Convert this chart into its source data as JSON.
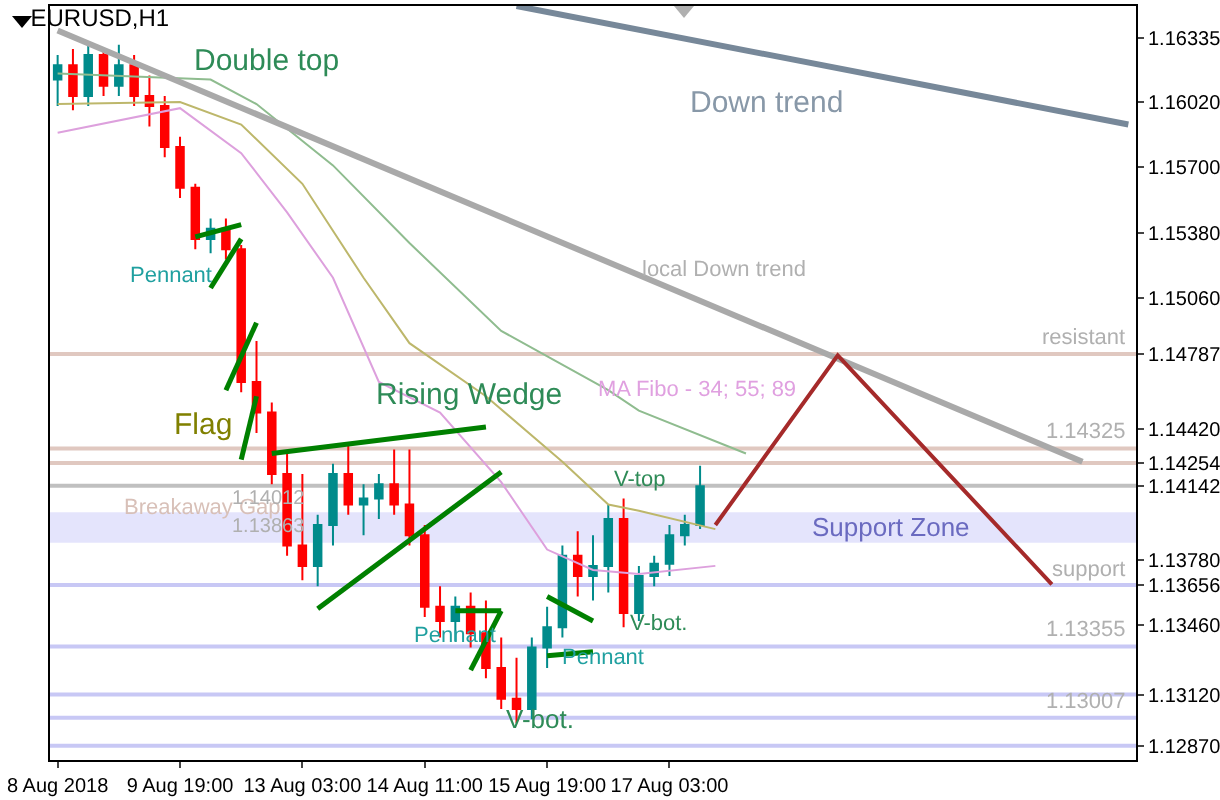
{
  "chart_data": {
    "type": "candlestick",
    "title": "EURUSD,H1",
    "categories": [
      "8 Aug 2018",
      null,
      null,
      null,
      null,
      null,
      null,
      null,
      "9 Aug 19:00",
      null,
      null,
      null,
      null,
      null,
      null,
      null,
      "13 Aug 03:00",
      null,
      null,
      null,
      null,
      null,
      null,
      null,
      "14 Aug 11:00",
      null,
      null,
      null,
      null,
      null,
      null,
      null,
      "15 Aug 19:00",
      null,
      null,
      null,
      null,
      null,
      null,
      null,
      "17 Aug 03:00",
      null,
      null,
      null,
      null,
      null,
      null,
      null,
      null,
      null,
      null,
      null,
      null,
      null,
      null,
      null,
      null,
      null,
      null,
      null,
      null,
      null,
      null,
      null,
      null,
      null,
      null,
      null,
      null,
      null,
      null
    ],
    "ohlc": [
      [
        1.1613,
        1.1625,
        1.16,
        1.162
      ],
      [
        1.162,
        1.1628,
        1.1598,
        1.1605
      ],
      [
        1.1605,
        1.163,
        1.16,
        1.1625
      ],
      [
        1.1625,
        1.1628,
        1.1605,
        1.161
      ],
      [
        1.161,
        1.163,
        1.1605,
        1.162
      ],
      [
        1.162,
        1.1625,
        1.16,
        1.1605
      ],
      [
        1.1605,
        1.1615,
        1.159,
        1.16
      ],
      [
        1.16,
        1.1605,
        1.1575,
        1.158
      ],
      [
        1.158,
        1.1585,
        1.1555,
        1.156
      ],
      [
        1.156,
        1.1562,
        1.153,
        1.1535
      ],
      [
        1.1535,
        1.1545,
        1.1528,
        1.154
      ],
      [
        1.154,
        1.1545,
        1.1525,
        1.153
      ],
      [
        1.153,
        1.1532,
        1.146,
        1.1465
      ],
      [
        1.1465,
        1.1485,
        1.144,
        1.145
      ],
      [
        1.145,
        1.1455,
        1.1415,
        1.142
      ],
      [
        1.142,
        1.143,
        1.138,
        1.1385
      ],
      [
        1.1385,
        1.142,
        1.1368,
        1.1375
      ],
      [
        1.1375,
        1.14,
        1.1365,
        1.1395
      ],
      [
        1.1395,
        1.1425,
        1.1385,
        1.142
      ],
      [
        1.142,
        1.1435,
        1.14,
        1.1405
      ],
      [
        1.1405,
        1.1415,
        1.139,
        1.1408
      ],
      [
        1.1408,
        1.142,
        1.1398,
        1.1415
      ],
      [
        1.1415,
        1.1432,
        1.14,
        1.1405
      ],
      [
        1.1405,
        1.1432,
        1.1385,
        1.139
      ],
      [
        1.139,
        1.1395,
        1.135,
        1.1355
      ],
      [
        1.1355,
        1.1365,
        1.134,
        1.1348
      ],
      [
        1.1348,
        1.136,
        1.1338,
        1.1355
      ],
      [
        1.1355,
        1.1362,
        1.1335,
        1.1342
      ],
      [
        1.1342,
        1.1358,
        1.132,
        1.1325
      ],
      [
        1.1325,
        1.134,
        1.1305,
        1.131
      ],
      [
        1.131,
        1.133,
        1.1298,
        1.1305
      ],
      [
        1.1305,
        1.134,
        1.13,
        1.1335
      ],
      [
        1.1335,
        1.1355,
        1.1325,
        1.1345
      ],
      [
        1.1345,
        1.1385,
        1.134,
        1.138
      ],
      [
        1.138,
        1.1392,
        1.136,
        1.137
      ],
      [
        1.137,
        1.139,
        1.1358,
        1.1375
      ],
      [
        1.1375,
        1.1405,
        1.1362,
        1.1398
      ],
      [
        1.1398,
        1.1408,
        1.1345,
        1.1352
      ],
      [
        1.1352,
        1.1375,
        1.1348,
        1.137
      ],
      [
        1.137,
        1.138,
        1.1365,
        1.1376
      ],
      [
        1.1376,
        1.1395,
        1.137,
        1.139
      ],
      [
        1.139,
        1.14,
        1.1385,
        1.1395
      ],
      [
        1.1395,
        1.1424,
        1.1393,
        1.1414
      ],
      null,
      null,
      null,
      null,
      null,
      null,
      null,
      null,
      null,
      null,
      null,
      null,
      null,
      null,
      null,
      null,
      null,
      null,
      null,
      null,
      null,
      null,
      null,
      null,
      null,
      null,
      null,
      null
    ],
    "series": [
      {
        "type": "line",
        "color": "#8fbc8f",
        "values": [
          1.1616,
          null,
          null,
          null,
          null,
          null,
          null,
          null,
          null,
          null,
          1.1613,
          null,
          null,
          1.1601,
          null,
          null,
          null,
          null,
          1.1571,
          null,
          null,
          null,
          null,
          1.1533,
          null,
          null,
          null,
          null,
          null,
          1.149,
          null,
          null,
          null,
          null,
          null,
          null,
          1.1461,
          null,
          1.1451,
          null,
          null,
          null,
          null,
          null,
          null,
          1.143,
          null,
          null,
          null,
          null,
          null,
          null,
          null,
          null,
          null,
          null,
          null,
          null,
          null,
          null,
          null,
          null,
          null,
          null,
          null,
          null,
          null,
          null,
          null,
          null,
          null
        ]
      },
      {
        "type": "line",
        "color": "#bdb76b",
        "values": [
          1.1601,
          null,
          null,
          null,
          null,
          null,
          null,
          null,
          1.1602,
          null,
          null,
          null,
          1.1591,
          null,
          null,
          null,
          1.1562,
          null,
          null,
          null,
          1.1516,
          null,
          null,
          1.1484,
          null,
          null,
          null,
          null,
          1.1458,
          null,
          null,
          null,
          null,
          1.1426,
          null,
          null,
          1.1405,
          null,
          1.1402,
          null,
          null,
          null,
          null,
          1.1393,
          null,
          null,
          null,
          null,
          null,
          null,
          null,
          null,
          null,
          null,
          null,
          null,
          null,
          null,
          null,
          null,
          null,
          null,
          null,
          null,
          null,
          null,
          null,
          null,
          null,
          null,
          null
        ]
      },
      {
        "type": "line",
        "color": "#dda0dd",
        "values": [
          1.1587,
          null,
          null,
          null,
          null,
          null,
          null,
          null,
          1.1599,
          null,
          null,
          null,
          1.1577,
          null,
          null,
          1.1548,
          null,
          null,
          1.1516,
          null,
          null,
          1.1465,
          null,
          null,
          null,
          1.145,
          null,
          null,
          null,
          1.1416,
          null,
          null,
          1.1383,
          null,
          null,
          1.1373,
          null,
          null,
          1.1371,
          null,
          null,
          null,
          null,
          1.1375,
          null,
          null,
          null,
          null,
          null,
          null,
          null,
          null,
          null,
          null,
          null,
          null,
          null,
          null,
          null,
          null,
          null,
          null,
          null,
          null,
          null,
          null,
          null,
          null,
          null,
          null,
          null
        ]
      },
      {
        "type": "line",
        "color": "#778899",
        "values": [
          null,
          null,
          null,
          null,
          null,
          null,
          null,
          null,
          null,
          null,
          null,
          null,
          null,
          null,
          null,
          null,
          null,
          null,
          null,
          null,
          null,
          null,
          null,
          null,
          null,
          null,
          null,
          null,
          null,
          null,
          1.1649,
          null,
          null,
          null,
          null,
          null,
          null,
          null,
          null,
          null,
          null,
          null,
          null,
          null,
          null,
          null,
          null,
          null,
          null,
          null,
          null,
          null,
          null,
          null,
          null,
          null,
          null,
          null,
          null,
          null,
          null,
          null,
          null,
          null,
          null,
          null,
          null,
          null,
          null,
          null,
          1.1591
        ]
      },
      {
        "type": "line",
        "color": "#a9a9a9",
        "values": [
          1.1637,
          null,
          null,
          null,
          null,
          null,
          null,
          null,
          null,
          null,
          null,
          null,
          null,
          null,
          null,
          null,
          null,
          null,
          null,
          null,
          null,
          null,
          null,
          null,
          null,
          null,
          null,
          null,
          null,
          null,
          null,
          null,
          null,
          null,
          null,
          null,
          null,
          null,
          null,
          null,
          null,
          null,
          null,
          null,
          null,
          null,
          null,
          null,
          null,
          null,
          null,
          null,
          null,
          null,
          null,
          null,
          null,
          null,
          null,
          null,
          null,
          null,
          null,
          null,
          null,
          null,
          null,
          1.1426,
          null,
          null,
          null
        ]
      },
      {
        "type": "line",
        "color": "#a52a2a",
        "values": [
          null,
          null,
          null,
          null,
          null,
          null,
          null,
          null,
          null,
          null,
          null,
          null,
          null,
          null,
          null,
          null,
          null,
          null,
          null,
          null,
          null,
          null,
          null,
          null,
          null,
          null,
          null,
          null,
          null,
          null,
          null,
          null,
          null,
          null,
          null,
          null,
          null,
          null,
          null,
          null,
          null,
          null,
          null,
          1.1395,
          null,
          null,
          null,
          null,
          null,
          null,
          null,
          1.1478,
          null,
          null,
          null,
          null,
          null,
          null,
          null,
          null,
          null,
          null,
          null,
          null,
          null,
          1.1366,
          null,
          null,
          null,
          null,
          null
        ]
      },
      {
        "type": "line",
        "color": "#008000",
        "values": [
          null,
          null,
          null,
          null,
          null,
          null,
          null,
          null,
          null,
          1.1536,
          null,
          null,
          1.1542,
          null,
          null,
          null,
          null,
          null,
          null,
          null,
          null,
          null,
          null,
          null,
          null,
          null,
          null,
          null,
          null,
          null,
          null,
          null,
          null,
          null,
          null,
          null,
          null,
          null,
          null,
          null,
          null,
          null,
          null,
          null,
          null,
          null,
          null,
          null,
          null,
          null,
          null,
          null,
          null,
          null,
          null,
          null,
          null,
          null,
          null,
          null,
          null,
          null,
          null,
          null,
          null,
          null,
          null,
          null,
          null,
          null,
          null
        ]
      },
      {
        "type": "line",
        "color": "#008000",
        "values": [
          null,
          null,
          null,
          null,
          null,
          null,
          null,
          null,
          null,
          null,
          1.1511,
          null,
          1.1535,
          null,
          null,
          null,
          null,
          null,
          null,
          null,
          null,
          null,
          null,
          null,
          null,
          null,
          null,
          null,
          null,
          null,
          null,
          null,
          null,
          null,
          null,
          null,
          null,
          null,
          null,
          null,
          null,
          null,
          null,
          null,
          null,
          null,
          null,
          null,
          null,
          null,
          null,
          null,
          null,
          null,
          null,
          null,
          null,
          null,
          null,
          null,
          null,
          null,
          null,
          null,
          null,
          null,
          null,
          null,
          null,
          null,
          null
        ]
      },
      {
        "type": "line",
        "color": "#008000",
        "values": [
          null,
          null,
          null,
          null,
          null,
          null,
          null,
          null,
          null,
          null,
          null,
          1.1461,
          null,
          1.1494,
          null,
          null,
          null,
          null,
          null,
          null,
          null,
          null,
          null,
          null,
          null,
          null,
          null,
          null,
          null,
          null,
          null,
          null,
          null,
          null,
          null,
          null,
          null,
          null,
          null,
          null,
          null,
          null,
          null,
          null,
          null,
          null,
          null,
          null,
          null,
          null,
          null,
          null,
          null,
          null,
          null,
          null,
          null,
          null,
          null,
          null,
          null,
          null,
          null,
          null,
          null,
          null,
          null,
          null,
          null,
          null,
          null
        ]
      },
      {
        "type": "line",
        "color": "#008000",
        "values": [
          null,
          null,
          null,
          null,
          null,
          null,
          null,
          null,
          null,
          null,
          null,
          null,
          1.1427,
          1.1458,
          null,
          null,
          null,
          null,
          null,
          null,
          null,
          null,
          null,
          null,
          null,
          null,
          null,
          null,
          null,
          null,
          null,
          null,
          null,
          null,
          null,
          null,
          null,
          null,
          null,
          null,
          null,
          null,
          null,
          null,
          null,
          null,
          null,
          null,
          null,
          null,
          null,
          null,
          null,
          null,
          null,
          null,
          null,
          null,
          null,
          null,
          null,
          null,
          null,
          null,
          null,
          null,
          null,
          null,
          null,
          null,
          null
        ]
      },
      {
        "type": "line",
        "color": "#008000",
        "values": [
          null,
          null,
          null,
          null,
          null,
          null,
          null,
          null,
          null,
          null,
          null,
          null,
          null,
          null,
          1.143,
          null,
          null,
          null,
          null,
          null,
          null,
          null,
          null,
          null,
          null,
          null,
          null,
          null,
          1.1443,
          null,
          null,
          null,
          null,
          null,
          null,
          null,
          null,
          null,
          null,
          null,
          null,
          null,
          null,
          null,
          null,
          null,
          null,
          null,
          null,
          null,
          null,
          null,
          null,
          null,
          null,
          null,
          null,
          null,
          null,
          null,
          null,
          null,
          null,
          null,
          null,
          null,
          null,
          null,
          null,
          null,
          null
        ]
      },
      {
        "type": "line",
        "color": "#008000",
        "values": [
          null,
          null,
          null,
          null,
          null,
          null,
          null,
          null,
          null,
          null,
          null,
          null,
          null,
          null,
          null,
          null,
          null,
          1.1354,
          null,
          null,
          null,
          null,
          null,
          null,
          null,
          null,
          null,
          null,
          null,
          1.1421,
          null,
          null,
          null,
          null,
          null,
          null,
          null,
          null,
          null,
          null,
          null,
          null,
          null,
          null,
          null,
          null,
          null,
          null,
          null,
          null,
          null,
          null,
          null,
          null,
          null,
          null,
          null,
          null,
          null,
          null,
          null,
          null,
          null,
          null,
          null,
          null,
          null,
          null,
          null,
          null,
          null
        ]
      },
      {
        "type": "line",
        "color": "#008000",
        "values": [
          null,
          null,
          null,
          null,
          null,
          null,
          null,
          null,
          null,
          null,
          null,
          null,
          null,
          null,
          null,
          null,
          null,
          null,
          null,
          null,
          null,
          null,
          null,
          null,
          null,
          null,
          1.1353,
          null,
          null,
          1.1353,
          null,
          null,
          null,
          null,
          null,
          null,
          null,
          null,
          null,
          null,
          null,
          null,
          null,
          null,
          null,
          null,
          null,
          null,
          null,
          null,
          null,
          null,
          null,
          null,
          null,
          null,
          null,
          null,
          null,
          null,
          null,
          null,
          null,
          null,
          null,
          null,
          null,
          null,
          null,
          null,
          null
        ]
      },
      {
        "type": "line",
        "color": "#008000",
        "values": [
          null,
          null,
          null,
          null,
          null,
          null,
          null,
          null,
          null,
          null,
          null,
          null,
          null,
          null,
          null,
          null,
          null,
          null,
          null,
          null,
          null,
          null,
          null,
          null,
          null,
          null,
          null,
          1.1324,
          null,
          1.1353,
          null,
          null,
          null,
          null,
          null,
          null,
          null,
          null,
          null,
          null,
          null,
          null,
          null,
          null,
          null,
          null,
          null,
          null,
          null,
          null,
          null,
          null,
          null,
          null,
          null,
          null,
          null,
          null,
          null,
          null,
          null,
          null,
          null,
          null,
          null,
          null,
          null,
          null,
          null,
          null,
          null
        ]
      },
      {
        "type": "line",
        "color": "#008000",
        "values": [
          null,
          null,
          null,
          null,
          null,
          null,
          null,
          null,
          null,
          null,
          null,
          null,
          null,
          null,
          null,
          null,
          null,
          null,
          null,
          null,
          null,
          null,
          null,
          null,
          null,
          null,
          null,
          null,
          null,
          null,
          null,
          null,
          1.136,
          null,
          null,
          1.1348,
          null,
          null,
          null,
          null,
          null,
          null,
          null,
          null,
          null,
          null,
          null,
          null,
          null,
          null,
          null,
          null,
          null,
          null,
          null,
          null,
          null,
          null,
          null,
          null,
          null,
          null,
          null,
          null,
          null,
          null,
          null,
          null,
          null,
          null,
          null
        ]
      },
      {
        "type": "line",
        "color": "#008000",
        "values": [
          null,
          null,
          null,
          null,
          null,
          null,
          null,
          null,
          null,
          null,
          null,
          null,
          null,
          null,
          null,
          null,
          null,
          null,
          null,
          null,
          null,
          null,
          null,
          null,
          null,
          null,
          null,
          null,
          null,
          null,
          null,
          null,
          1.1331,
          null,
          null,
          1.1333,
          null,
          null,
          null,
          null,
          null,
          null,
          null,
          null,
          null,
          null,
          null,
          null,
          null,
          null,
          null,
          null,
          null,
          null,
          null,
          null,
          null,
          null,
          null,
          null,
          null,
          null,
          null,
          null,
          null,
          null,
          null,
          null,
          null,
          null,
          null
        ]
      }
    ],
    "ylim": [
      1.128,
      1.1649
    ],
    "yticks": [
      1.16335,
      {
        "value": 1.1602,
        "label": "1.16020"
      },
      {
        "value": 1.157,
        "label": "1.15700"
      },
      {
        "value": 1.1538,
        "label": "1.15380"
      },
      {
        "value": 1.1506,
        "label": "1.15060"
      },
      1.14787,
      {
        "value": 1.1442,
        "label": "1.14420"
      },
      1.14254,
      1.14142,
      {
        "value": 1.1378,
        "label": "1.13780"
      },
      1.13656,
      {
        "value": 1.1346,
        "label": "1.13460"
      },
      {
        "value": 1.1312,
        "label": "1.13120"
      },
      {
        "value": 1.1287,
        "label": "1.12870"
      }
    ],
    "ref_lines": [
      {
        "axis": "y",
        "value": 1.14787,
        "label": "resistant",
        "color": "#e0c8c0"
      },
      {
        "axis": "y",
        "value": 1.14325,
        "label": "1.14325",
        "color": "#e0c8c0"
      },
      {
        "axis": "y",
        "value": 1.14254,
        "label": null,
        "color": "#e0c8c0"
      },
      {
        "axis": "y",
        "value": 1.14142,
        "label": null,
        "color": "#c0c0c0"
      },
      {
        "axis": "y",
        "value": 1.13656,
        "label": "support",
        "color": "#c8c8f5"
      },
      {
        "axis": "y",
        "value": 1.13355,
        "label": "1.13355",
        "color": "#c8c8f5"
      },
      {
        "axis": "y",
        "value": 1.1312,
        "label": null,
        "color": "#c8c8f5"
      },
      {
        "axis": "y",
        "value": 1.13007,
        "label": "1.13007",
        "color": "#c8c8f5"
      },
      {
        "axis": "y",
        "value": 1.1287,
        "label": null,
        "color": "#c8c8f5"
      }
    ],
    "bands": [
      {
        "axis": "y",
        "from": 1.13863,
        "to": 1.14012,
        "label": "Support Zone",
        "color": "#e4e4fc"
      }
    ],
    "annotations": [
      "Double top",
      "Pennant",
      "Flag",
      "Rising Wedge",
      "Breakaway Gap",
      "1.14012",
      "1.13863",
      "Pennant",
      "Pennant",
      "V-top",
      "V-bot.",
      "V-bot.",
      "Down trend",
      "local Down trend",
      "MA Fibo - 34; 55; 89"
    ],
    "grid": false
  }
}
